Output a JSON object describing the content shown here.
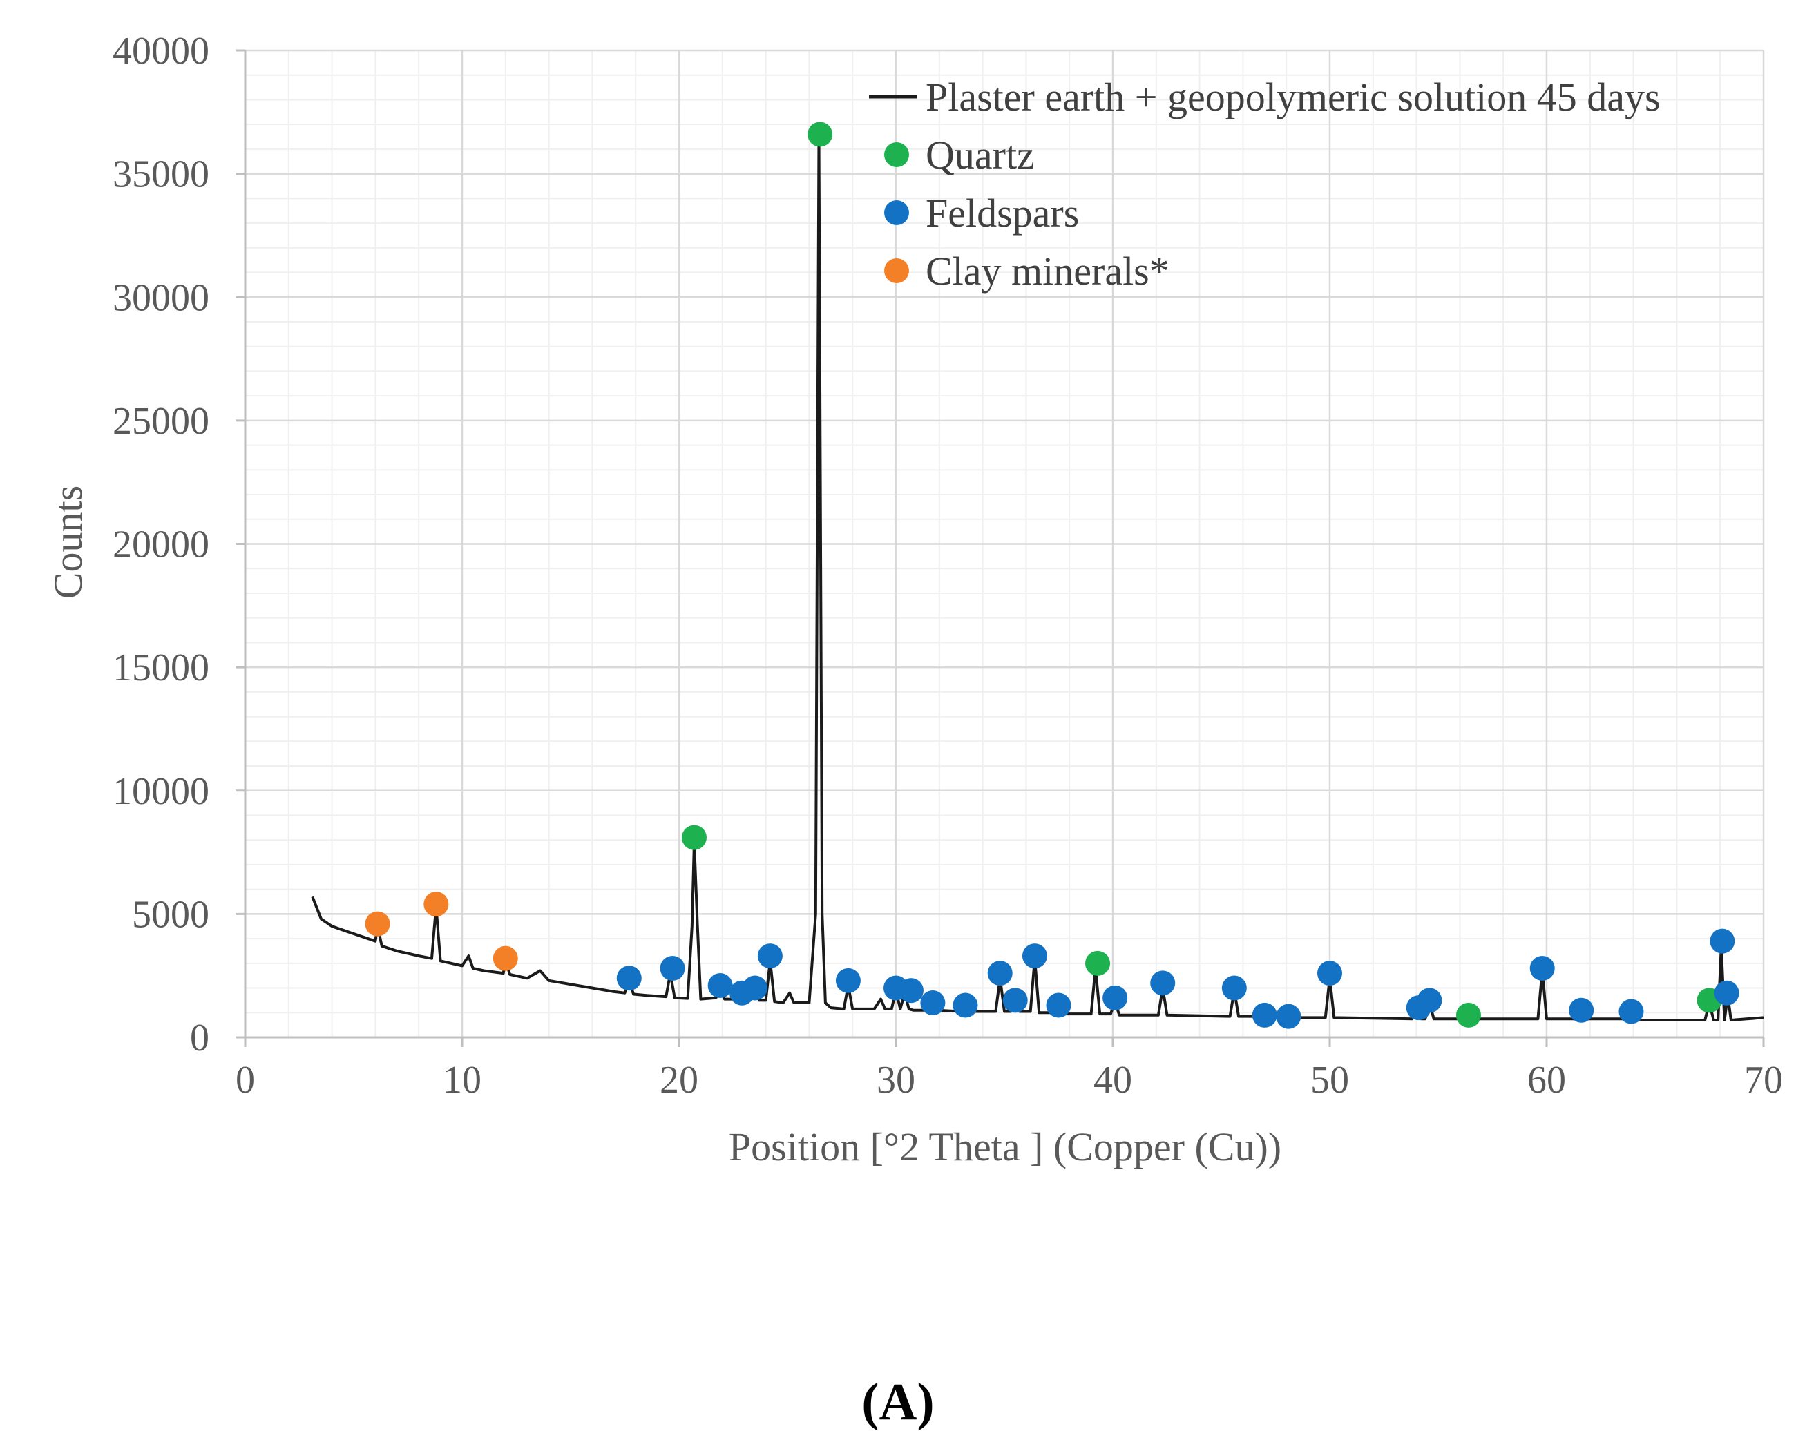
{
  "chart_data": {
    "type": "line",
    "title": "",
    "xlabel": "Position [°2 Theta ] (Copper (Cu))",
    "ylabel": "Counts",
    "xlim": [
      0,
      70
    ],
    "ylim": [
      0,
      40000
    ],
    "x_ticks": [
      0,
      10,
      20,
      30,
      40,
      50,
      60,
      70
    ],
    "y_ticks": [
      0,
      5000,
      10000,
      15000,
      20000,
      25000,
      30000,
      35000,
      40000
    ],
    "x_tick_labels": [
      "0",
      "10",
      "20",
      "30",
      "40",
      "50",
      "60",
      "70"
    ],
    "y_tick_labels": [
      "0",
      "5000",
      "10000",
      "15000",
      "20000",
      "25000",
      "30000",
      "35000",
      "40000"
    ],
    "grid": true,
    "legend_position": "top-right",
    "series": [
      {
        "name": "Plaster earth + geopolymeric solution 45 days",
        "color": "#1a1a1a",
        "kind": "line",
        "x": [
          3.1,
          3.5,
          4,
          5,
          6,
          6.1,
          6.3,
          7,
          8,
          8.6,
          8.8,
          9,
          10,
          10.3,
          10.5,
          11,
          11.9,
          12,
          12.2,
          13,
          13.6,
          14,
          15,
          16,
          17,
          17.5,
          17.7,
          17.9,
          18.5,
          19.4,
          19.6,
          19.8,
          20.4,
          20.6,
          20.7,
          20.85,
          21,
          21.7,
          21.9,
          22.1,
          22.7,
          22.9,
          23.1,
          23.3,
          23.5,
          23.7,
          24,
          24.2,
          24.4,
          24.8,
          25.1,
          25.3,
          26,
          26.3,
          26.45,
          26.6,
          26.75,
          27,
          27.6,
          27.8,
          28,
          29,
          29.3,
          29.5,
          29.8,
          30,
          30.2,
          30.4,
          30.6,
          30.8,
          31.5,
          31.7,
          31.9,
          33,
          33.2,
          33.4,
          34.6,
          34.8,
          35,
          35.3,
          35.5,
          35.7,
          36.2,
          36.4,
          36.6,
          37.3,
          37.5,
          37.7,
          39,
          39.2,
          39.4,
          39.9,
          40.1,
          40.3,
          42.1,
          42.3,
          42.5,
          45.4,
          45.6,
          45.8,
          46.8,
          47,
          47.2,
          47.9,
          48.1,
          48.3,
          49.8,
          50,
          50.2,
          53.8,
          54,
          54.2,
          54.4,
          54.6,
          54.8,
          56.2,
          56.4,
          56.6,
          59.6,
          59.8,
          60,
          61.4,
          61.6,
          61.8,
          63.7,
          63.9,
          64.1,
          67.3,
          67.5,
          67.7,
          67.9,
          68.05,
          68.2,
          68.35,
          68.5,
          70
        ],
        "y": [
          5700,
          4800,
          4500,
          4200,
          3900,
          4500,
          3700,
          3500,
          3300,
          3200,
          5300,
          3100,
          2900,
          3300,
          2800,
          2700,
          2600,
          3100,
          2550,
          2400,
          2700,
          2300,
          2150,
          2000,
          1850,
          1800,
          2300,
          1750,
          1700,
          1650,
          2600,
          1600,
          1580,
          4500,
          7900,
          4500,
          1550,
          1600,
          1950,
          1550,
          1550,
          1700,
          1550,
          1650,
          1900,
          1500,
          1500,
          3100,
          1450,
          1400,
          1800,
          1400,
          1400,
          5000,
          36500,
          5000,
          1400,
          1200,
          1150,
          2100,
          1150,
          1150,
          1550,
          1150,
          1150,
          1900,
          1150,
          1800,
          1150,
          1100,
          1100,
          1300,
          1100,
          1050,
          1150,
          1050,
          1050,
          2400,
          1050,
          1050,
          1400,
          1050,
          1050,
          3200,
          1000,
          1000,
          1150,
          950,
          950,
          2800,
          950,
          950,
          1450,
          900,
          900,
          2000,
          900,
          850,
          1900,
          850,
          850,
          900,
          850,
          850,
          900,
          800,
          800,
          2400,
          800,
          750,
          1100,
          750,
          750,
          1400,
          750,
          750,
          800,
          750,
          750,
          2700,
          750,
          750,
          950,
          750,
          750,
          900,
          700,
          700,
          1400,
          700,
          700,
          3700,
          700,
          1700,
          700,
          800
        ]
      },
      {
        "name": "Quartz",
        "color": "#1db14f",
        "kind": "markers",
        "x": [
          20.7,
          26.5,
          39.3,
          56.4,
          67.5
        ],
        "y": [
          8100,
          36600,
          3000,
          900,
          1500
        ]
      },
      {
        "name": "Feldspars",
        "color": "#1372c4",
        "kind": "markers",
        "x": [
          17.7,
          19.7,
          21.9,
          22.9,
          23.5,
          24.2,
          27.8,
          30.0,
          30.7,
          31.7,
          33.2,
          34.8,
          35.5,
          36.4,
          37.5,
          40.1,
          42.3,
          45.6,
          47.0,
          48.1,
          50.0,
          54.1,
          54.6,
          59.8,
          61.6,
          63.9,
          68.1,
          68.3
        ],
        "y": [
          2400,
          2800,
          2100,
          1800,
          2000,
          3300,
          2300,
          2000,
          1900,
          1400,
          1300,
          2600,
          1500,
          3300,
          1300,
          1600,
          2200,
          2000,
          900,
          850,
          2600,
          1200,
          1500,
          2800,
          1100,
          1050,
          3900,
          1800
        ]
      },
      {
        "name": "Clay minerals*",
        "color": "#f37f27",
        "kind": "markers",
        "x": [
          6.1,
          8.8,
          12.0
        ],
        "y": [
          4600,
          5400,
          3200
        ]
      }
    ]
  },
  "caption": "(A)"
}
